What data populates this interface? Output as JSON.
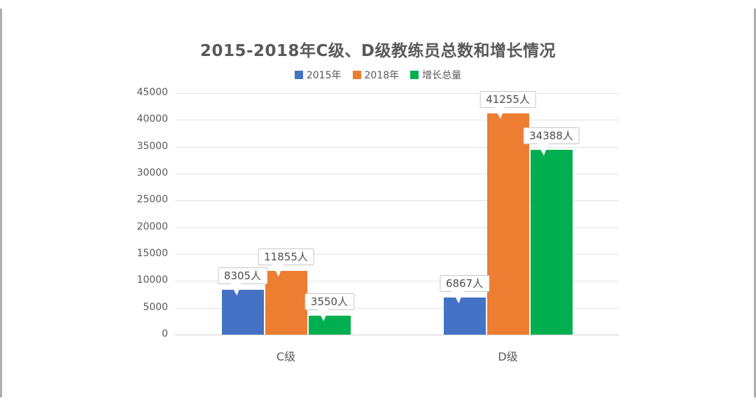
{
  "frame": {
    "background": "#ffffff",
    "edge_color": "#aeaeae"
  },
  "chart_data": {
    "type": "bar",
    "title": "2015-2018年C级、D级教练员总数和增长情况",
    "categories": [
      "C级",
      "D级"
    ],
    "series": [
      {
        "name": "2015年",
        "color": "#4472C4",
        "values": [
          8305,
          6867
        ],
        "labels": [
          "8305人",
          "6867人"
        ]
      },
      {
        "name": "2018年",
        "color": "#ED7D31",
        "values": [
          11855,
          41255
        ],
        "labels": [
          "11855人",
          "41255人"
        ]
      },
      {
        "name": "增长总量",
        "color": "#00B050",
        "values": [
          3550,
          34388
        ],
        "labels": [
          "3550人",
          "34388人"
        ]
      }
    ],
    "xlabel": "",
    "ylabel": "",
    "ylim": [
      0,
      45000
    ],
    "ytick_step": 5000,
    "yticks": [
      0,
      5000,
      10000,
      15000,
      20000,
      25000,
      30000,
      35000,
      40000,
      45000
    ],
    "grid": true,
    "legend_position": "top",
    "data_label_unit": "人",
    "colors": {
      "title_text": "#595959",
      "axis_text": "#595959",
      "gridline": "#e3e3e3",
      "callout_background": "#ffffff",
      "callout_border": "#c7c7c7",
      "callout_text": "#4d4d4d"
    }
  }
}
